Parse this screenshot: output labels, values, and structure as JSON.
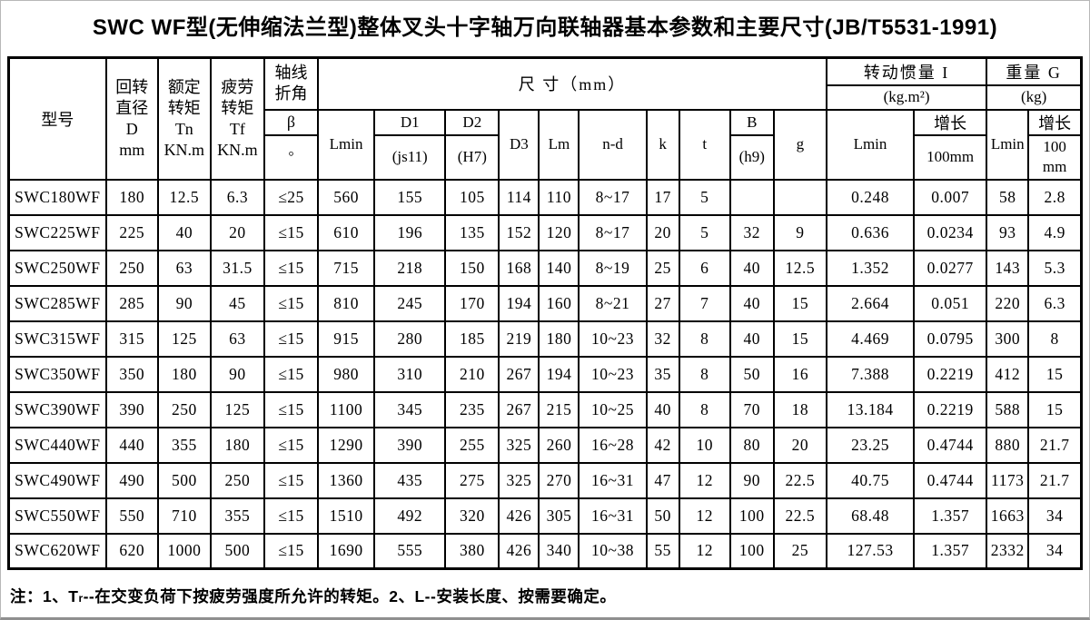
{
  "title": "SWC WF型(无伸缩法兰型)整体叉头十字轴万向联轴器基本参数和主要尺寸(JB/T5531-1991)",
  "header": {
    "model": "型号",
    "col_d": "回转\n直径\nD\nmm",
    "col_tn": "额定\n转矩\nTn\nKN.m",
    "col_tf": "疲劳\n转矩\nTf\nKN.m",
    "col_angle": "轴线\n折角",
    "beta": "β",
    "deg": "°",
    "size_group": "尺 寸（mm）",
    "lmin": "Lmin",
    "d1": "D1",
    "d1_tol": "(js11)",
    "d2": "D2",
    "d2_tol": "(H7)",
    "d3": "D3",
    "lm": "Lm",
    "nd": "n-d",
    "k": "k",
    "t": "t",
    "b": "B",
    "b_tol": "(h9)",
    "g": "g",
    "inertia_group": "转动惯量 I",
    "inertia_unit": "(kg.m²)",
    "i_lmin": "Lmin",
    "i_growth": "增长",
    "i_growth_unit": "100mm",
    "weight_group": "重量 G",
    "weight_unit": "(kg)",
    "g_lmin": "Lmin",
    "g_growth": "增长",
    "g_growth_unit": "100\nmm"
  },
  "rows": [
    [
      "SWC180WF",
      "180",
      "12.5",
      "6.3",
      "≤25",
      "560",
      "155",
      "105",
      "114",
      "110",
      "8~17",
      "17",
      "5",
      "",
      "",
      "0.248",
      "0.007",
      "58",
      "2.8"
    ],
    [
      "SWC225WF",
      "225",
      "40",
      "20",
      "≤15",
      "610",
      "196",
      "135",
      "152",
      "120",
      "8~17",
      "20",
      "5",
      "32",
      "9",
      "0.636",
      "0.0234",
      "93",
      "4.9"
    ],
    [
      "SWC250WF",
      "250",
      "63",
      "31.5",
      "≤15",
      "715",
      "218",
      "150",
      "168",
      "140",
      "8~19",
      "25",
      "6",
      "40",
      "12.5",
      "1.352",
      "0.0277",
      "143",
      "5.3"
    ],
    [
      "SWC285WF",
      "285",
      "90",
      "45",
      "≤15",
      "810",
      "245",
      "170",
      "194",
      "160",
      "8~21",
      "27",
      "7",
      "40",
      "15",
      "2.664",
      "0.051",
      "220",
      "6.3"
    ],
    [
      "SWC315WF",
      "315",
      "125",
      "63",
      "≤15",
      "915",
      "280",
      "185",
      "219",
      "180",
      "10~23",
      "32",
      "8",
      "40",
      "15",
      "4.469",
      "0.0795",
      "300",
      "8"
    ],
    [
      "SWC350WF",
      "350",
      "180",
      "90",
      "≤15",
      "980",
      "310",
      "210",
      "267",
      "194",
      "10~23",
      "35",
      "8",
      "50",
      "16",
      "7.388",
      "0.2219",
      "412",
      "15"
    ],
    [
      "SWC390WF",
      "390",
      "250",
      "125",
      "≤15",
      "1100",
      "345",
      "235",
      "267",
      "215",
      "10~25",
      "40",
      "8",
      "70",
      "18",
      "13.184",
      "0.2219",
      "588",
      "15"
    ],
    [
      "SWC440WF",
      "440",
      "355",
      "180",
      "≤15",
      "1290",
      "390",
      "255",
      "325",
      "260",
      "16~28",
      "42",
      "10",
      "80",
      "20",
      "23.25",
      "0.4744",
      "880",
      "21.7"
    ],
    [
      "SWC490WF",
      "490",
      "500",
      "250",
      "≤15",
      "1360",
      "435",
      "275",
      "325",
      "270",
      "16~31",
      "47",
      "12",
      "90",
      "22.5",
      "40.75",
      "0.4744",
      "1173",
      "21.7"
    ],
    [
      "SWC550WF",
      "550",
      "710",
      "355",
      "≤15",
      "1510",
      "492",
      "320",
      "426",
      "305",
      "16~31",
      "50",
      "12",
      "100",
      "22.5",
      "68.48",
      "1.357",
      "1663",
      "34"
    ],
    [
      "SWC620WF",
      "620",
      "1000",
      "500",
      "≤15",
      "1690",
      "555",
      "380",
      "426",
      "340",
      "10~38",
      "55",
      "12",
      "100",
      "25",
      "127.53",
      "1.357",
      "2332",
      "34"
    ]
  ],
  "note": {
    "p1": "注：1、T",
    "sub": "r",
    "p2": "--在交变负荷下按疲劳强度所允许的转矩。2、L--安装长度、按需要确定。"
  }
}
